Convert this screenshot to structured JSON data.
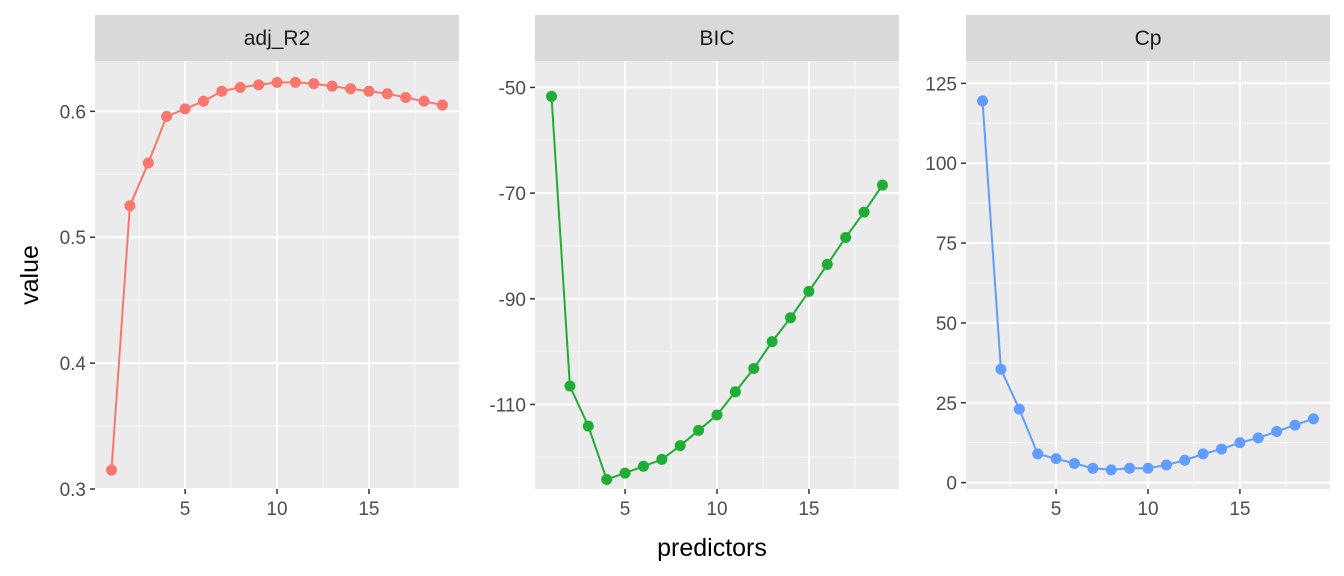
{
  "chart_data": {
    "type": "line",
    "layout": "facets",
    "xlabel": "predictors",
    "ylabel": "value",
    "grid": true,
    "legend": "none",
    "x": [
      1,
      2,
      3,
      4,
      5,
      6,
      7,
      8,
      9,
      10,
      11,
      12,
      13,
      14,
      15,
      16,
      17,
      18,
      19
    ],
    "x_ticks": [
      5,
      10,
      15
    ],
    "x_range": [
      0.1,
      19.9
    ],
    "panels": [
      {
        "name": "adj_R2",
        "color": "#F8766D",
        "values": [
          0.315,
          0.525,
          0.559,
          0.596,
          0.602,
          0.608,
          0.616,
          0.619,
          0.621,
          0.623,
          0.623,
          0.622,
          0.62,
          0.618,
          0.616,
          0.614,
          0.611,
          0.608,
          0.605
        ],
        "ylim": [
          0.3,
          0.64
        ],
        "y_ticks": [
          0.3,
          0.4,
          0.5,
          0.6
        ],
        "y_tick_labels": [
          "0.3",
          "0.4",
          "0.5",
          "0.6"
        ]
      },
      {
        "name": "BIC",
        "color": "#1FAE35",
        "values": [
          -51.7,
          -106.5,
          -114.1,
          -124.2,
          -123.0,
          -121.7,
          -120.4,
          -117.8,
          -114.9,
          -112.0,
          -107.6,
          -103.2,
          -98.1,
          -93.6,
          -88.6,
          -83.5,
          -78.4,
          -73.6,
          -68.5
        ],
        "ylim": [
          -126,
          -45
        ],
        "y_ticks": [
          -50,
          -70,
          -90,
          -110
        ],
        "y_tick_labels": [
          "-50",
          "-70",
          "-90",
          "-110"
        ]
      },
      {
        "name": "Cp",
        "color": "#619CFF",
        "values": [
          119.5,
          35.5,
          23.0,
          9.0,
          7.5,
          6.0,
          4.5,
          4.0,
          4.5,
          4.5,
          5.5,
          7.0,
          9.0,
          10.5,
          12.5,
          14.0,
          16.0,
          18.0,
          20.0
        ],
        "ylim": [
          -2,
          132
        ],
        "y_ticks": [
          0,
          25,
          50,
          75,
          100,
          125
        ],
        "y_tick_labels": [
          "0",
          "25",
          "50",
          "75",
          "100",
          "125"
        ]
      }
    ]
  }
}
